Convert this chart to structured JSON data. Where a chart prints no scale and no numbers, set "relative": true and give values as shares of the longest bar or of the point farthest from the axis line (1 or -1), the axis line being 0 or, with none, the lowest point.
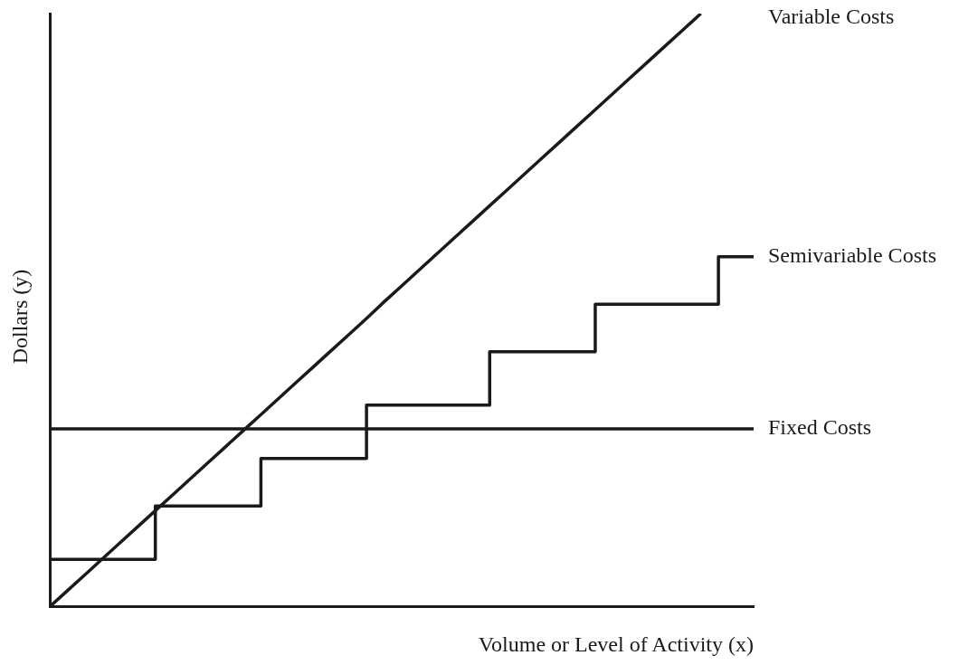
{
  "chart_data": {
    "type": "line",
    "relative": true,
    "xlabel": "Volume or Level of Activity (x)",
    "ylabel": "Dollars (y)",
    "grid": false,
    "legend": false,
    "marker": "none",
    "line_style": "solid",
    "categories": [
      null,
      null,
      null,
      null,
      null,
      null,
      null,
      null,
      null,
      null,
      null,
      null,
      null,
      null,
      null,
      null,
      null,
      null,
      null,
      null,
      null,
      null,
      null,
      null,
      null,
      null,
      null,
      null,
      null,
      null,
      null,
      null,
      null,
      null,
      null,
      null,
      null,
      null,
      null,
      null,
      null
    ],
    "series": [
      {
        "name": "Variable Costs",
        "type": "line",
        "color": "#1a1a1a",
        "values": [
          0,
          0.027,
          0.054,
          0.081,
          0.108,
          0.135,
          0.162,
          0.189,
          0.216,
          0.243,
          0.27,
          0.297,
          0.324,
          0.351,
          0.378,
          0.405,
          0.432,
          0.459,
          0.486,
          0.514,
          0.541,
          0.568,
          0.595,
          0.622,
          0.649,
          0.676,
          0.703,
          0.73,
          0.757,
          0.784,
          0.811,
          0.838,
          0.865,
          0.892,
          0.919,
          0.946,
          0.973,
          1,
          null,
          null,
          null
        ]
      },
      {
        "name": "Semivariable Costs",
        "type": "step",
        "color": "#1a1a1a",
        "values": [
          0.08,
          0.08,
          0.08,
          0.08,
          0.08,
          0.08,
          0.17,
          0.17,
          0.17,
          0.17,
          0.17,
          0.17,
          0.25,
          0.25,
          0.25,
          0.25,
          0.25,
          0.25,
          0.34,
          0.34,
          0.34,
          0.34,
          0.34,
          0.34,
          0.34,
          0.43,
          0.43,
          0.43,
          0.43,
          0.43,
          0.43,
          0.51,
          0.51,
          0.51,
          0.51,
          0.51,
          0.51,
          0.51,
          0.59,
          0.59,
          0.59
        ]
      },
      {
        "name": "Fixed Costs",
        "type": "line",
        "color": "#1a1a1a",
        "values": [
          0.3,
          0.3,
          0.3,
          0.3,
          0.3,
          0.3,
          0.3,
          0.3,
          0.3,
          0.3,
          0.3,
          0.3,
          0.3,
          0.3,
          0.3,
          0.3,
          0.3,
          0.3,
          0.3,
          0.3,
          0.3,
          0.3,
          0.3,
          0.3,
          0.3,
          0.3,
          0.3,
          0.3,
          0.3,
          0.3,
          0.3,
          0.3,
          0.3,
          0.3,
          0.3,
          0.3,
          0.3,
          0.3,
          0.3,
          0.3,
          0.3
        ]
      }
    ]
  }
}
